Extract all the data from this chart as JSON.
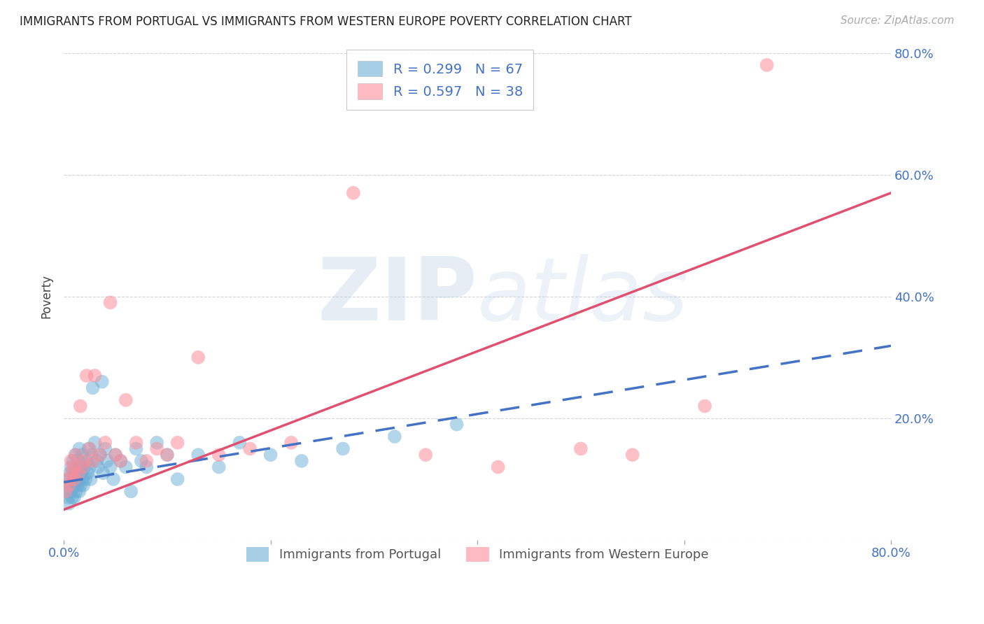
{
  "title": "IMMIGRANTS FROM PORTUGAL VS IMMIGRANTS FROM WESTERN EUROPE POVERTY CORRELATION CHART",
  "source": "Source: ZipAtlas.com",
  "ylabel": "Poverty",
  "xlim": [
    0.0,
    0.8
  ],
  "ylim": [
    0.0,
    0.8
  ],
  "watermark_part1": "ZIP",
  "watermark_part2": "atlas",
  "legend": {
    "series1_label": "R = 0.299   N = 67",
    "series2_label": "R = 0.597   N = 38",
    "bottom_label1": "Immigrants from Portugal",
    "bottom_label2": "Immigrants from Western Europe"
  },
  "series1_color": "#6baed6",
  "series2_color": "#fc8d99",
  "trendline1_color": "#4472c4",
  "trendline2_color": "#e05070",
  "background_color": "#ffffff",
  "grid_color": "#cccccc",
  "portugal_x": [
    0.002,
    0.003,
    0.004,
    0.005,
    0.005,
    0.006,
    0.007,
    0.007,
    0.008,
    0.008,
    0.009,
    0.009,
    0.01,
    0.01,
    0.011,
    0.011,
    0.012,
    0.012,
    0.013,
    0.013,
    0.014,
    0.014,
    0.015,
    0.015,
    0.016,
    0.016,
    0.017,
    0.018,
    0.018,
    0.019,
    0.02,
    0.021,
    0.022,
    0.023,
    0.024,
    0.025,
    0.026,
    0.027,
    0.028,
    0.03,
    0.032,
    0.033,
    0.035,
    0.037,
    0.038,
    0.04,
    0.042,
    0.045,
    0.048,
    0.05,
    0.055,
    0.06,
    0.065,
    0.07,
    0.075,
    0.08,
    0.09,
    0.1,
    0.11,
    0.13,
    0.15,
    0.17,
    0.2,
    0.23,
    0.27,
    0.32,
    0.38
  ],
  "portugal_y": [
    0.08,
    0.09,
    0.07,
    0.1,
    0.06,
    0.11,
    0.08,
    0.12,
    0.07,
    0.09,
    0.1,
    0.13,
    0.07,
    0.11,
    0.09,
    0.14,
    0.08,
    0.12,
    0.09,
    0.11,
    0.1,
    0.13,
    0.08,
    0.15,
    0.09,
    0.12,
    0.11,
    0.1,
    0.14,
    0.09,
    0.12,
    0.1,
    0.13,
    0.11,
    0.15,
    0.12,
    0.1,
    0.14,
    0.25,
    0.16,
    0.13,
    0.12,
    0.14,
    0.26,
    0.11,
    0.15,
    0.13,
    0.12,
    0.1,
    0.14,
    0.13,
    0.12,
    0.08,
    0.15,
    0.13,
    0.12,
    0.16,
    0.14,
    0.1,
    0.14,
    0.12,
    0.16,
    0.14,
    0.13,
    0.15,
    0.17,
    0.19
  ],
  "western_x": [
    0.002,
    0.003,
    0.005,
    0.007,
    0.008,
    0.009,
    0.01,
    0.012,
    0.014,
    0.016,
    0.018,
    0.02,
    0.022,
    0.025,
    0.028,
    0.03,
    0.035,
    0.04,
    0.045,
    0.05,
    0.055,
    0.06,
    0.07,
    0.08,
    0.09,
    0.1,
    0.11,
    0.13,
    0.15,
    0.18,
    0.22,
    0.28,
    0.35,
    0.42,
    0.5,
    0.55,
    0.62,
    0.68
  ],
  "western_y": [
    0.08,
    0.1,
    0.09,
    0.13,
    0.11,
    0.12,
    0.1,
    0.14,
    0.11,
    0.22,
    0.12,
    0.13,
    0.27,
    0.15,
    0.13,
    0.27,
    0.14,
    0.16,
    0.39,
    0.14,
    0.13,
    0.23,
    0.16,
    0.13,
    0.15,
    0.14,
    0.16,
    0.3,
    0.14,
    0.15,
    0.16,
    0.57,
    0.14,
    0.12,
    0.15,
    0.14,
    0.22,
    0.78
  ],
  "trendline1_intercept": 0.095,
  "trendline1_slope": 0.28,
  "trendline2_intercept": 0.05,
  "trendline2_slope": 0.65
}
